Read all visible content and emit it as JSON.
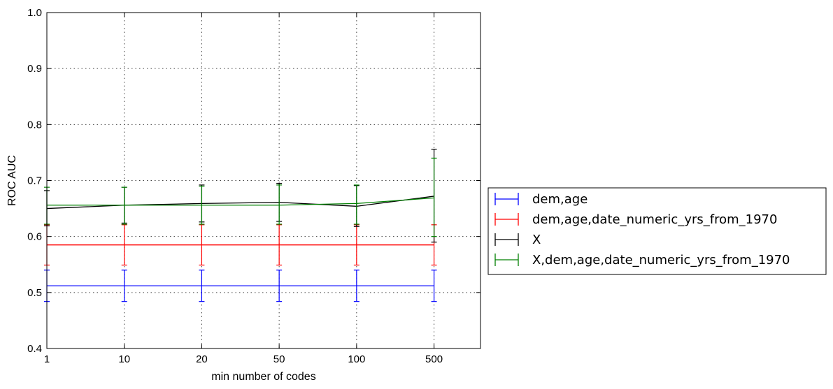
{
  "chart_data": {
    "type": "line",
    "title": "",
    "xlabel": "min number of codes",
    "ylabel": "ROC AUC",
    "x_ticks": [
      "1",
      "10",
      "20",
      "50",
      "100",
      "500"
    ],
    "x_positions": [
      0,
      1,
      2,
      3,
      4,
      5
    ],
    "xlim": [
      0,
      5.6
    ],
    "ylim": [
      0.4,
      1.0
    ],
    "y_ticks": [
      0.4,
      0.5,
      0.6,
      0.7,
      0.8,
      0.9,
      1.0
    ],
    "y_tick_labels": [
      "0.4",
      "0.5",
      "0.6",
      "0.7",
      "0.8",
      "0.9",
      "1.0"
    ],
    "grid": true,
    "legend_position": "outside-right",
    "series": [
      {
        "name": "dem,age",
        "color": "#0000ff",
        "values": [
          0.512,
          0.512,
          0.512,
          0.512,
          0.512,
          0.512
        ],
        "err_low": [
          0.484,
          0.484,
          0.484,
          0.484,
          0.484,
          0.484
        ],
        "err_high": [
          0.54,
          0.54,
          0.54,
          0.54,
          0.54,
          0.54
        ]
      },
      {
        "name": "dem,age,date_numeric_yrs_from_1970",
        "color": "#ff0000",
        "values": [
          0.585,
          0.585,
          0.585,
          0.585,
          0.585,
          0.585
        ],
        "err_low": [
          0.549,
          0.549,
          0.549,
          0.549,
          0.549,
          0.549
        ],
        "err_high": [
          0.621,
          0.621,
          0.621,
          0.621,
          0.621,
          0.621
        ]
      },
      {
        "name": "X",
        "color": "#000000",
        "values": [
          0.65,
          0.656,
          0.659,
          0.661,
          0.654,
          0.672
        ],
        "err_low": [
          0.619,
          0.624,
          0.626,
          0.627,
          0.618,
          0.59
        ],
        "err_high": [
          0.682,
          0.688,
          0.692,
          0.695,
          0.691,
          0.756
        ]
      },
      {
        "name": "X,dem,age,date_numeric_yrs_from_1970",
        "color": "#008000",
        "values": [
          0.656,
          0.656,
          0.656,
          0.656,
          0.659,
          0.669
        ],
        "err_low": [
          0.622,
          0.622,
          0.622,
          0.622,
          0.622,
          0.6
        ],
        "err_high": [
          0.688,
          0.688,
          0.69,
          0.692,
          0.692,
          0.74
        ]
      }
    ]
  }
}
